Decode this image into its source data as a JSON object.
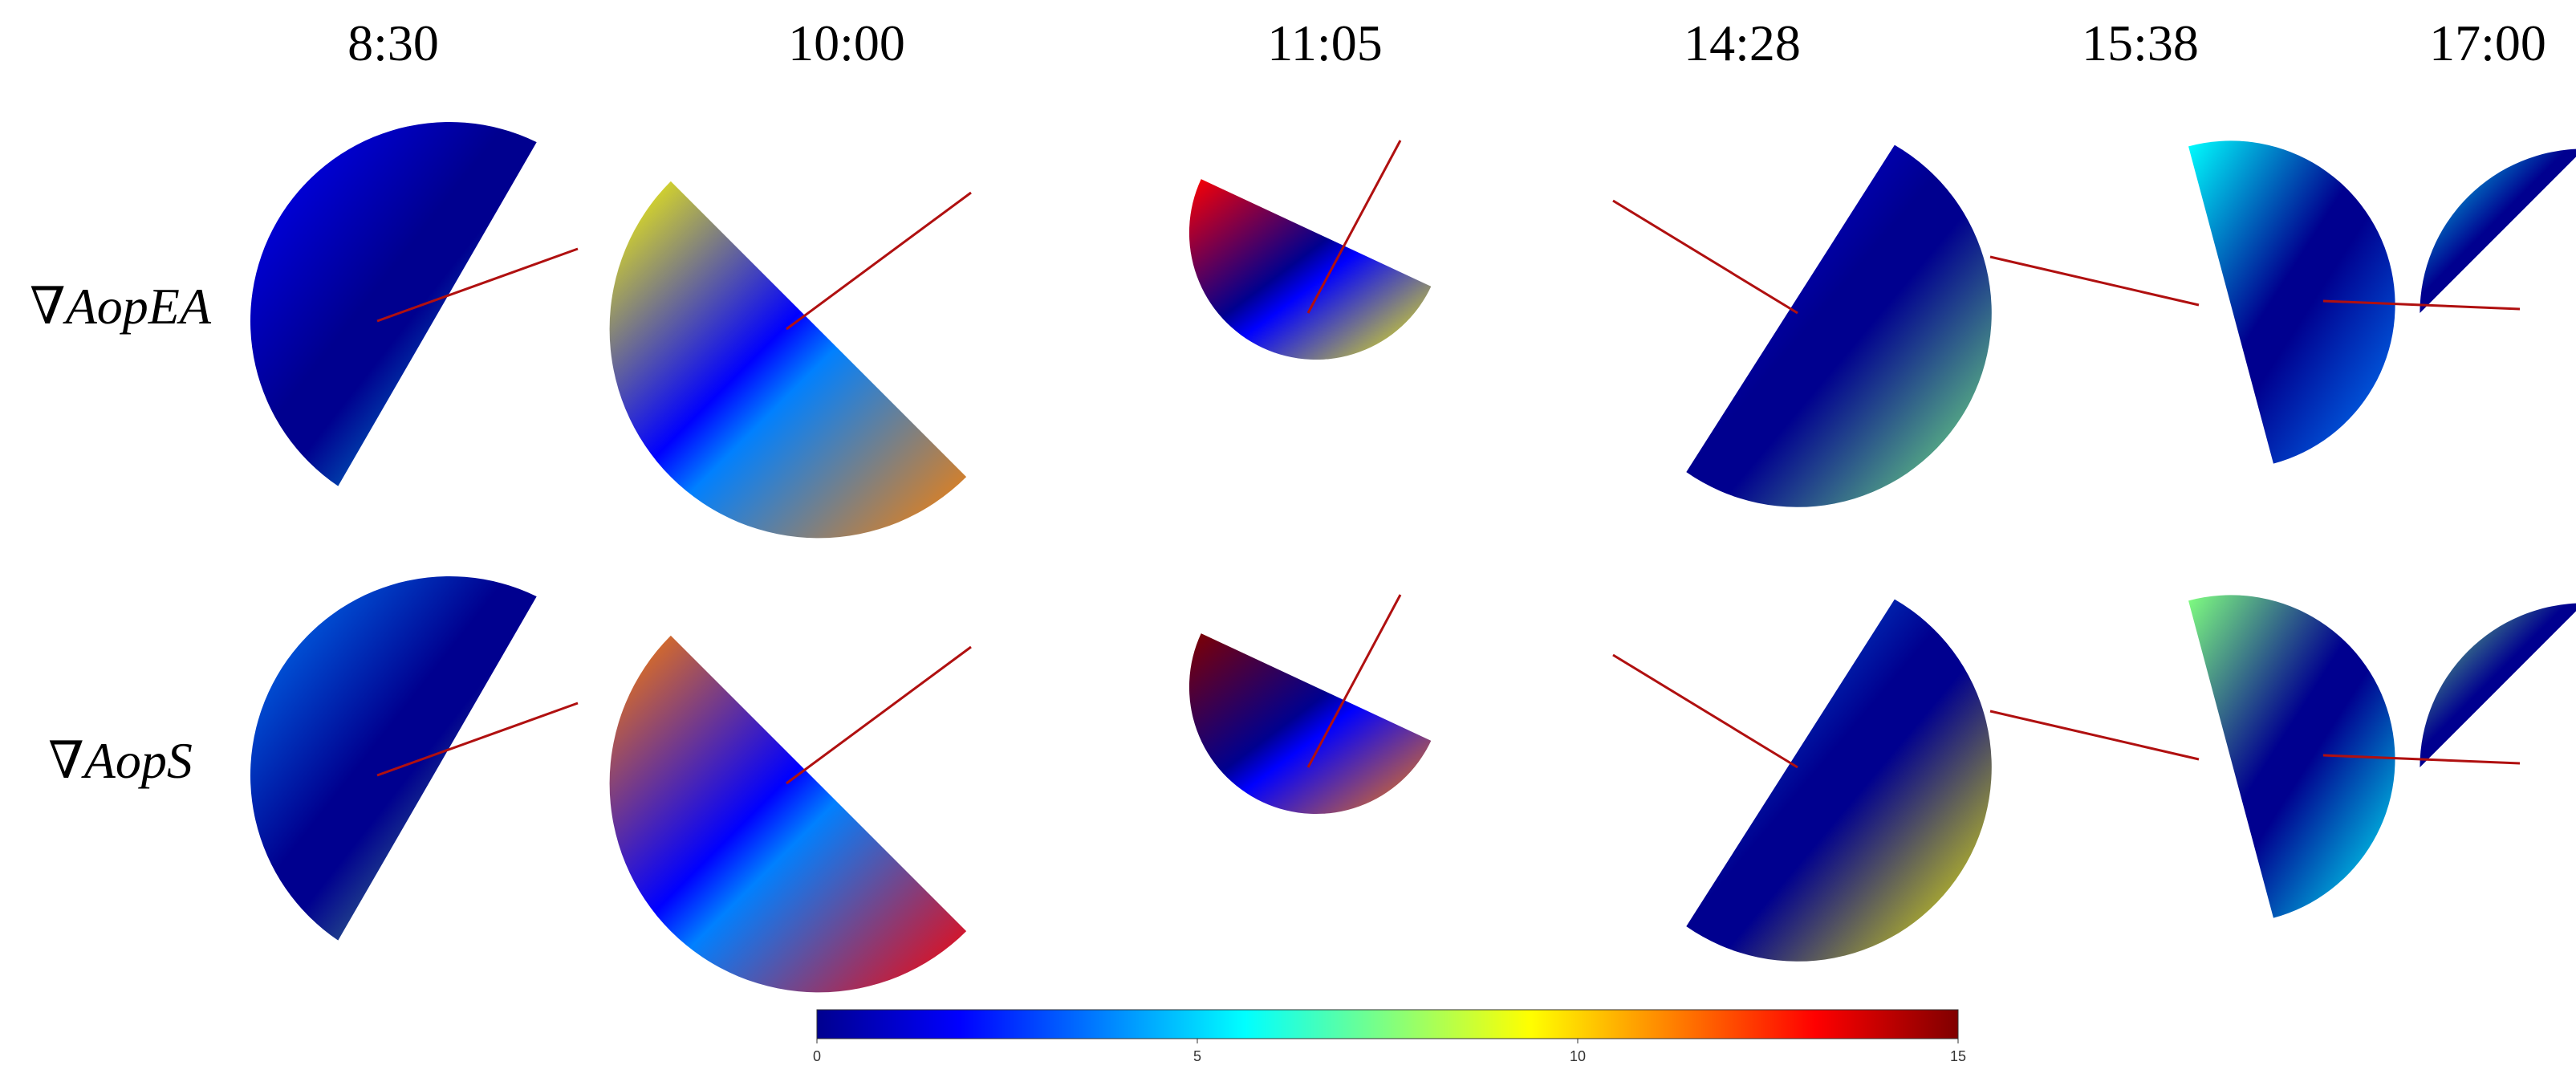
{
  "time_labels": [
    "8:30",
    "10:00",
    "11:05",
    "14:28",
    "15:38",
    "17:00"
  ],
  "row_labels": [
    {
      "symbol": "∇",
      "name": "AopEA"
    },
    {
      "symbol": "∇",
      "name": "AopS"
    }
  ],
  "colorbar": {
    "min": 0,
    "max": 15,
    "ticks": [
      "0",
      "5",
      "10",
      "15"
    ],
    "colormap": "jet"
  },
  "colors": {
    "jet_stops": [
      "#00008f",
      "#0000ff",
      "#0080ff",
      "#00ffff",
      "#80ff80",
      "#ffff00",
      "#ff8000",
      "#ff0000",
      "#800000"
    ],
    "meridian_line": "#b01010"
  }
}
